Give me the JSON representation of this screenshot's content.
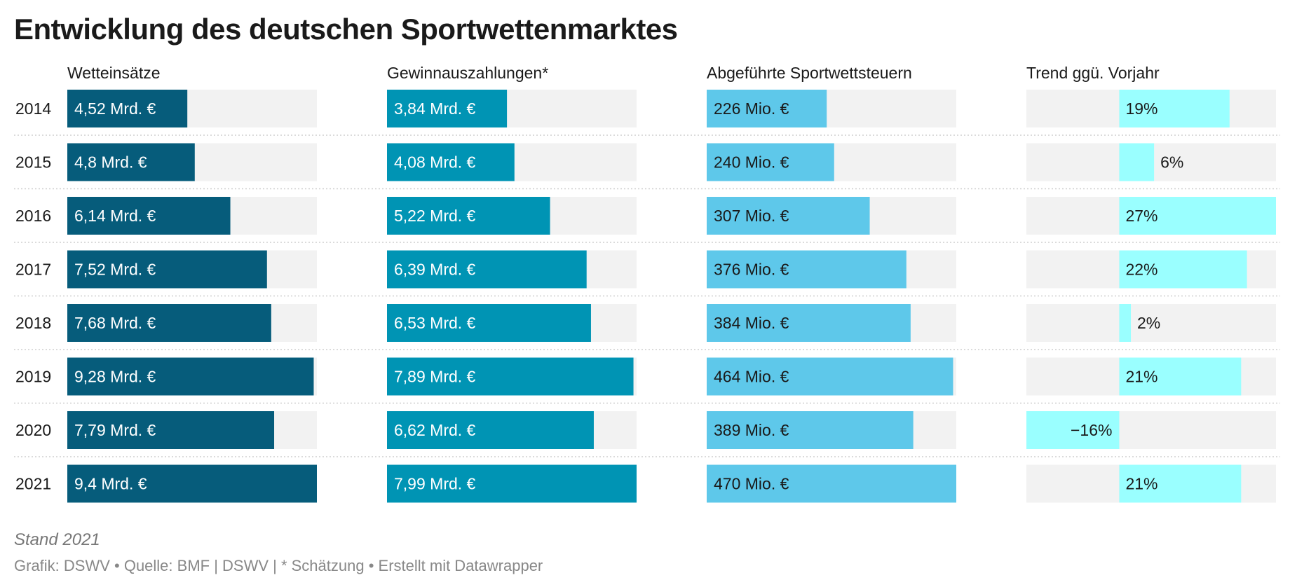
{
  "title": "Entwicklung des deutschen Sportwettenmarktes",
  "footer": {
    "note": "Stand 2021",
    "source": "Grafik: DSWV • Quelle: BMF | DSWV | * Schätzung • Erstellt mit Datawrapper"
  },
  "colors": {
    "bg_track": "#f2f2f2",
    "wetteinsaetze": "#065c7b",
    "gewinnauszahlungen": "#0094b4",
    "steuern": "#5ec8ea",
    "trend": "#9affff",
    "separator": "#cfcfcf"
  },
  "chart_data": {
    "type": "table",
    "years": [
      "2014",
      "2015",
      "2016",
      "2017",
      "2018",
      "2019",
      "2020",
      "2021"
    ],
    "columns": [
      {
        "name": "Wetteinsätze",
        "key": "wetteinsaetze",
        "max": 9.4,
        "values": [
          4.52,
          4.8,
          6.14,
          7.52,
          7.68,
          9.28,
          7.79,
          9.4
        ],
        "labels": [
          "4,52 Mrd. €",
          "4,8 Mrd. €",
          "6,14 Mrd. €",
          "7,52 Mrd. €",
          "7,68 Mrd. €",
          "9,28 Mrd. €",
          "7,79 Mrd. €",
          "9,4 Mrd. €"
        ]
      },
      {
        "name": "Gewinnauszahlungen*",
        "key": "gewinnauszahlungen",
        "max": 7.99,
        "values": [
          3.84,
          4.08,
          5.22,
          6.39,
          6.53,
          7.89,
          6.62,
          7.99
        ],
        "labels": [
          "3,84 Mrd. €",
          "4,08 Mrd. €",
          "5,22 Mrd. €",
          "6,39 Mrd. €",
          "6,53 Mrd. €",
          "7,89 Mrd. €",
          "6,62 Mrd. €",
          "7,99 Mrd. €"
        ]
      },
      {
        "name": "Abgeführte Sportwettsteuern",
        "key": "steuern",
        "max": 470,
        "values": [
          226,
          240,
          307,
          376,
          384,
          464,
          389,
          470
        ],
        "labels": [
          "226 Mio. €",
          "240 Mio. €",
          "307 Mio. €",
          "376 Mio. €",
          "384 Mio. €",
          "464 Mio. €",
          "389 Mio. €",
          "470 Mio. €"
        ]
      },
      {
        "name": "Trend ggü. Vorjahr",
        "key": "trend",
        "min": -16,
        "max": 27,
        "values": [
          19,
          6,
          27,
          22,
          2,
          21,
          -16,
          21
        ],
        "labels": [
          "19%",
          "6%",
          "27%",
          "22%",
          "2%",
          "21%",
          "−16%",
          "21%"
        ]
      }
    ]
  }
}
